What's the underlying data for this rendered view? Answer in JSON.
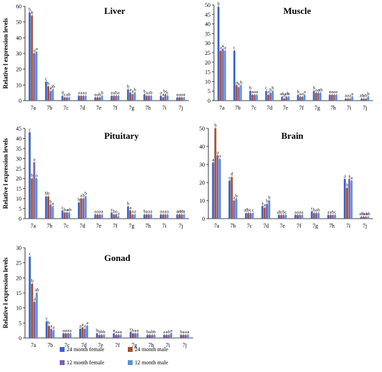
{
  "colors": {
    "24 month female": "#3c63c8",
    "24 month male": "#a0522d",
    "12 month female": "#7b5fb5",
    "12 month male": "#5a8fdc"
  },
  "figure": {
    "shared_ylabel": "Relative l expression levels",
    "legend": [
      "24 month female",
      "24 month male",
      "12 month female",
      "12 month male"
    ]
  },
  "chart_data": [
    {
      "type": "bar",
      "title": "Liver",
      "xlabel": "",
      "ylabel": "Relative l expression levels",
      "categories": [
        "7a",
        "7b",
        "7c",
        "7d",
        "7e",
        "7f",
        "7g",
        "7h",
        "7i",
        "7j"
      ],
      "ylim": [
        0,
        60
      ],
      "yticks": [
        0,
        10,
        20,
        30,
        40,
        50,
        60
      ],
      "grid": false,
      "legend_placement": "bottom",
      "series": [
        {
          "name": "24 month female",
          "values": [
            56,
            12,
            3,
            3,
            2,
            3,
            7,
            4,
            3,
            2
          ]
        },
        {
          "name": "24 month male",
          "values": [
            54,
            9,
            2,
            3,
            2,
            3,
            5,
            3,
            2,
            2
          ]
        },
        {
          "name": "12 month female",
          "values": [
            30,
            6,
            2,
            3,
            2,
            3,
            4,
            3,
            4,
            2
          ]
        },
        {
          "name": "12 month male",
          "values": [
            31,
            7,
            2,
            3,
            3,
            3,
            5,
            3,
            3,
            2
          ]
        }
      ],
      "letters": [
        [
          "b",
          "b",
          "a",
          "a"
        ],
        [
          "c",
          "b",
          "a",
          "ab"
        ],
        [
          "d",
          "c",
          "a",
          "b"
        ],
        [
          "a",
          "a",
          "a",
          "a"
        ],
        [
          "a",
          "a",
          "b",
          "b"
        ],
        [
          "a",
          "a",
          "b",
          "a"
        ],
        [
          "b",
          "a",
          "a",
          "b"
        ],
        [
          "b",
          "a",
          "a",
          "b"
        ],
        [
          "a",
          "a",
          "bc",
          "c"
        ],
        [
          "a",
          "a",
          "a",
          "a"
        ]
      ]
    },
    {
      "type": "bar",
      "title": "Muscle",
      "xlabel": "",
      "ylabel": "",
      "categories": [
        "7a",
        "7b",
        "7c",
        "7d",
        "7e",
        "7f",
        "7g",
        "7h",
        "7i",
        "7j"
      ],
      "ylim": [
        0,
        50
      ],
      "yticks": [
        0,
        5,
        10,
        15,
        20,
        25,
        30,
        35,
        40,
        45,
        50
      ],
      "grid": false,
      "series": [
        {
          "name": "24 month female",
          "values": [
            49,
            26,
            5,
            5,
            2,
            3,
            5,
            3,
            1,
            1
          ]
        },
        {
          "name": "24 month male",
          "values": [
            26,
            8,
            3,
            3,
            1,
            2,
            4,
            3,
            1,
            1
          ]
        },
        {
          "name": "12 month female",
          "values": [
            27,
            7,
            3,
            4,
            2,
            2,
            4,
            3,
            1,
            1
          ]
        },
        {
          "name": "12 month male",
          "values": [
            26,
            8,
            3,
            5,
            2,
            3,
            4,
            3,
            2,
            2
          ]
        }
      ],
      "letters": [
        [
          "b",
          "a",
          "a",
          "a"
        ],
        [
          "c",
          "a",
          "b",
          "b"
        ],
        [
          "b",
          "a",
          "a",
          "a"
        ],
        [
          "c",
          "a",
          "b",
          "b"
        ],
        [
          "ab",
          "a",
          "ab",
          "b"
        ],
        [
          "b",
          "a",
          "a",
          "a"
        ],
        [
          "b",
          "a",
          "a",
          "ab"
        ],
        [
          "a",
          "a",
          "a",
          "a"
        ],
        [
          "a",
          "a",
          "a",
          "a"
        ],
        [
          "ab",
          "a",
          "b",
          "b"
        ]
      ]
    },
    {
      "type": "bar",
      "title": "Pituitary",
      "xlabel": "",
      "ylabel": "Relative l expression levels",
      "categories": [
        "7a",
        "7b",
        "7c",
        "7d",
        "7e",
        "7f",
        "7g",
        "7h",
        "7i",
        "7j"
      ],
      "ylim": [
        0,
        45
      ],
      "yticks": [
        0,
        5,
        10,
        15,
        20,
        25,
        30,
        35,
        40,
        45
      ],
      "grid": false,
      "series": [
        {
          "name": "24 month female",
          "values": [
            43,
            11,
            4,
            8,
            2,
            3,
            6,
            2,
            2,
            2
          ]
        },
        {
          "name": "24 month male",
          "values": [
            20,
            11,
            3,
            10,
            2,
            2,
            4,
            2,
            2,
            2
          ]
        },
        {
          "name": "12 month female",
          "values": [
            28,
            7,
            3,
            10,
            2,
            2,
            2,
            2,
            2,
            2
          ]
        },
        {
          "name": "12 month male",
          "values": [
            20,
            6,
            3,
            11,
            2,
            1,
            2,
            2,
            2,
            2
          ]
        }
      ],
      "letters": [
        [
          "c",
          "b",
          "a",
          "a"
        ],
        [
          "b",
          "b",
          "b",
          "a"
        ],
        [
          "c",
          "b",
          "a",
          "ab"
        ],
        [
          "b",
          "a",
          "b",
          "b"
        ],
        [
          "a",
          "a",
          "a",
          "a"
        ],
        [
          "c",
          "b",
          "a",
          "a"
        ],
        [
          "b",
          "a",
          "a",
          "a"
        ],
        [
          "b",
          "a",
          "a",
          "a"
        ],
        [
          "a",
          "a",
          "a",
          "a"
        ],
        [
          "a",
          "ab",
          "ab",
          "a"
        ]
      ]
    },
    {
      "type": "bar",
      "title": "Brain",
      "xlabel": "",
      "ylabel": "",
      "categories": [
        "7a",
        "7b",
        "7c",
        "7d",
        "7e",
        "7f",
        "7g",
        "7h",
        "7i",
        "7j"
      ],
      "ylim": [
        0,
        50
      ],
      "yticks": [
        0,
        10,
        20,
        30,
        40,
        50
      ],
      "grid": false,
      "series": [
        {
          "name": "24 month female",
          "values": [
            31,
            21,
            3,
            7,
            2,
            2,
            4,
            2,
            22,
            1
          ]
        },
        {
          "name": "24 month male",
          "values": [
            50,
            23,
            3,
            6,
            2,
            2,
            3,
            2,
            17,
            1
          ]
        },
        {
          "name": "12 month female",
          "values": [
            35,
            10,
            3,
            8,
            2,
            2,
            3,
            2,
            22,
            1
          ]
        },
        {
          "name": "12 month male",
          "values": [
            33,
            11,
            3,
            10,
            2,
            2,
            3,
            2,
            21,
            1
          ]
        }
      ],
      "letters": [
        [
          "a",
          "b",
          "a",
          "a"
        ],
        [
          "c",
          "d",
          "a",
          "b"
        ],
        [
          "ab",
          "b",
          "c",
          "c"
        ],
        [
          "a",
          "a",
          "b",
          "b"
        ],
        [
          "ab",
          "c",
          "b",
          "c"
        ],
        [
          "a",
          "a",
          "a",
          "a"
        ],
        [
          "c",
          "b",
          "a",
          "b"
        ],
        [
          "a",
          "a",
          "b",
          "c"
        ],
        [
          "a",
          "b",
          "a",
          "a"
        ],
        [
          "ab",
          "b",
          "ab",
          "ab"
        ]
      ]
    },
    {
      "type": "bar",
      "title": "Gonad",
      "xlabel": "",
      "ylabel": "Relative l expression levels",
      "categories": [
        "7a",
        "7b",
        "7c",
        "7d",
        "7e",
        "7f",
        "7g",
        "7h",
        "7i",
        "7j"
      ],
      "ylim": [
        0,
        30
      ],
      "yticks": [
        0,
        5,
        10,
        15,
        20,
        25,
        30
      ],
      "grid": false,
      "series": [
        {
          "name": "24 month female",
          "values": [
            27,
            5.5,
            1.5,
            3,
            1.5,
            1.5,
            2,
            1,
            1,
            1
          ]
        },
        {
          "name": "24 month male",
          "values": [
            18,
            4,
            1.5,
            3.5,
            1,
            1,
            1.5,
            1,
            1,
            1
          ]
        },
        {
          "name": "12 month female",
          "values": [
            12,
            3,
            1.5,
            3,
            1,
            1,
            1.5,
            1,
            1,
            1
          ]
        },
        {
          "name": "12 month male",
          "values": [
            15,
            2.5,
            1.5,
            4,
            1,
            1,
            1.5,
            1,
            1.5,
            1
          ]
        }
      ],
      "letters": [
        [
          "c",
          "b",
          "a",
          "ab"
        ],
        [
          "c",
          "b",
          "a",
          "a"
        ],
        [
          "a",
          "a",
          "a",
          "a"
        ],
        [
          "a",
          "a",
          "a",
          "a"
        ],
        [
          "b",
          "b",
          "b",
          "b"
        ],
        [
          "a",
          "a",
          "a",
          "a"
        ],
        [
          "c",
          "b",
          "a",
          "a"
        ],
        [
          "b",
          "a",
          "b",
          "b"
        ],
        [
          "a",
          "a",
          "b",
          "a"
        ],
        [
          "b",
          "a",
          "a",
          "a"
        ]
      ]
    }
  ]
}
